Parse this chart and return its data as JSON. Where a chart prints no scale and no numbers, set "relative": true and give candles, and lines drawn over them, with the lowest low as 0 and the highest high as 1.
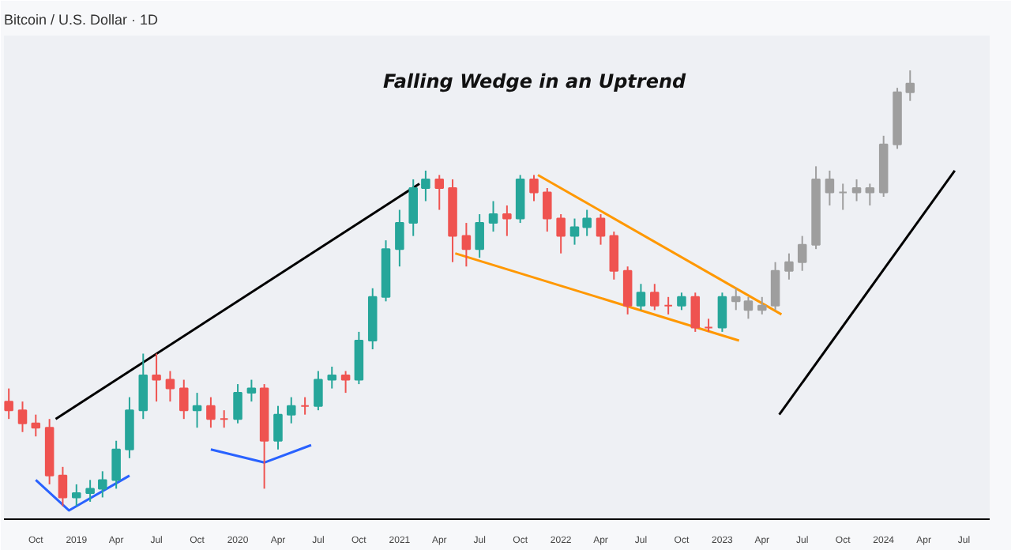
{
  "chart_data": {
    "type": "candlestick",
    "title": "Bitcoin / U.S. Dollar · 1D",
    "relative": true,
    "annotations": [
      "Falling Wedge in an Uptrend"
    ],
    "x": [
      "2018-08",
      "2018-09",
      "2018-10",
      "2018-11",
      "2018-12",
      "2019-01",
      "2019-02",
      "2019-03",
      "2019-04",
      "2019-05",
      "2019-06",
      "2019-07",
      "2019-08",
      "2019-09",
      "2019-10",
      "2019-11",
      "2019-12",
      "2020-01",
      "2020-02",
      "2020-03",
      "2020-04",
      "2020-05",
      "2020-06",
      "2020-07",
      "2020-08",
      "2020-09",
      "2020-10",
      "2020-11",
      "2020-12",
      "2021-01",
      "2021-02",
      "2021-03",
      "2021-04",
      "2021-05",
      "2021-06",
      "2021-07",
      "2021-08",
      "2021-09",
      "2021-10",
      "2021-11",
      "2021-12",
      "2022-01",
      "2022-02",
      "2022-03",
      "2022-04",
      "2022-05",
      "2022-06",
      "2022-07",
      "2022-08",
      "2022-09",
      "2022-10",
      "2022-11",
      "2022-12",
      "2023-01",
      "2023-02",
      "2023-03",
      "2023-04",
      "2023-05",
      "2023-06",
      "2023-07",
      "2023-08",
      "2023-09",
      "2023-10",
      "2023-11",
      "2023-12",
      "2024-01",
      "2024-02",
      "2024-03"
    ],
    "ohlc": [
      [
        0.24,
        0.27,
        0.2,
        0.22
      ],
      [
        0.22,
        0.24,
        0.17,
        0.19
      ],
      [
        0.19,
        0.21,
        0.16,
        0.18
      ],
      [
        0.18,
        0.2,
        0.05,
        0.07
      ],
      [
        0.07,
        0.09,
        0.0,
        0.02
      ],
      [
        0.02,
        0.05,
        0.0,
        0.03
      ],
      [
        0.03,
        0.06,
        0.01,
        0.04
      ],
      [
        0.04,
        0.08,
        0.02,
        0.06
      ],
      [
        0.06,
        0.15,
        0.04,
        0.13
      ],
      [
        0.13,
        0.25,
        0.11,
        0.22
      ],
      [
        0.22,
        0.35,
        0.2,
        0.3
      ],
      [
        0.3,
        0.35,
        0.24,
        0.29
      ],
      [
        0.29,
        0.31,
        0.24,
        0.27
      ],
      [
        0.27,
        0.29,
        0.2,
        0.22
      ],
      [
        0.22,
        0.26,
        0.18,
        0.23
      ],
      [
        0.23,
        0.25,
        0.18,
        0.2
      ],
      [
        0.2,
        0.22,
        0.18,
        0.2
      ],
      [
        0.2,
        0.28,
        0.19,
        0.26
      ],
      [
        0.26,
        0.29,
        0.24,
        0.27
      ],
      [
        0.27,
        0.28,
        0.04,
        0.15
      ],
      [
        0.15,
        0.23,
        0.13,
        0.21
      ],
      [
        0.21,
        0.25,
        0.19,
        0.23
      ],
      [
        0.23,
        0.25,
        0.21,
        0.23
      ],
      [
        0.23,
        0.31,
        0.22,
        0.29
      ],
      [
        0.29,
        0.32,
        0.27,
        0.3
      ],
      [
        0.3,
        0.31,
        0.26,
        0.29
      ],
      [
        0.29,
        0.4,
        0.28,
        0.38
      ],
      [
        0.38,
        0.5,
        0.36,
        0.48
      ],
      [
        0.48,
        0.61,
        0.47,
        0.59
      ],
      [
        0.59,
        0.68,
        0.55,
        0.65
      ],
      [
        0.65,
        0.75,
        0.62,
        0.73
      ],
      [
        0.73,
        0.77,
        0.7,
        0.75
      ],
      [
        0.75,
        0.76,
        0.68,
        0.73
      ],
      [
        0.73,
        0.75,
        0.56,
        0.62
      ],
      [
        0.62,
        0.65,
        0.55,
        0.59
      ],
      [
        0.59,
        0.67,
        0.57,
        0.65
      ],
      [
        0.65,
        0.7,
        0.63,
        0.67
      ],
      [
        0.67,
        0.69,
        0.62,
        0.66
      ],
      [
        0.66,
        0.76,
        0.65,
        0.75
      ],
      [
        0.75,
        0.76,
        0.7,
        0.72
      ],
      [
        0.72,
        0.73,
        0.63,
        0.66
      ],
      [
        0.66,
        0.67,
        0.58,
        0.62
      ],
      [
        0.62,
        0.66,
        0.6,
        0.64
      ],
      [
        0.64,
        0.68,
        0.62,
        0.66
      ],
      [
        0.66,
        0.67,
        0.6,
        0.62
      ],
      [
        0.62,
        0.63,
        0.52,
        0.54
      ],
      [
        0.54,
        0.55,
        0.44,
        0.46
      ],
      [
        0.46,
        0.51,
        0.45,
        0.49
      ],
      [
        0.49,
        0.51,
        0.45,
        0.46
      ],
      [
        0.46,
        0.48,
        0.44,
        0.46
      ],
      [
        0.46,
        0.49,
        0.45,
        0.48
      ],
      [
        0.48,
        0.49,
        0.4,
        0.41
      ],
      [
        0.41,
        0.43,
        0.4,
        0.41
      ],
      [
        0.41,
        0.49,
        0.4,
        0.48
      ],
      [
        0.48,
        0.5,
        0.45,
        0.47
      ],
      [
        0.47,
        0.48,
        0.43,
        0.45
      ],
      [
        0.45,
        0.48,
        0.44,
        0.46
      ],
      [
        0.46,
        0.56,
        0.45,
        0.54
      ],
      [
        0.54,
        0.58,
        0.52,
        0.56
      ],
      [
        0.56,
        0.62,
        0.54,
        0.6
      ],
      [
        0.6,
        0.78,
        0.59,
        0.75
      ],
      [
        0.75,
        0.77,
        0.69,
        0.72
      ],
      [
        0.72,
        0.74,
        0.68,
        0.72
      ],
      [
        0.72,
        0.75,
        0.7,
        0.73
      ],
      [
        0.73,
        0.74,
        0.69,
        0.72
      ],
      [
        0.72,
        0.85,
        0.71,
        0.83
      ],
      [
        0.83,
        0.96,
        0.82,
        0.95
      ],
      [
        0.95,
        1.0,
        0.93,
        0.97
      ]
    ],
    "colors": [
      "#ef5350",
      "#ef5350",
      "#ef5350",
      "#ef5350",
      "#ef5350",
      "#26a69a",
      "#26a69a",
      "#26a69a",
      "#26a69a",
      "#26a69a",
      "#26a69a",
      "#ef5350",
      "#ef5350",
      "#ef5350",
      "#26a69a",
      "#ef5350",
      "#ef5350",
      "#26a69a",
      "#26a69a",
      "#ef5350",
      "#26a69a",
      "#26a69a",
      "#ef5350",
      "#26a69a",
      "#26a69a",
      "#ef5350",
      "#26a69a",
      "#26a69a",
      "#26a69a",
      "#26a69a",
      "#26a69a",
      "#26a69a",
      "#ef5350",
      "#ef5350",
      "#ef5350",
      "#26a69a",
      "#26a69a",
      "#ef5350",
      "#26a69a",
      "#ef5350",
      "#ef5350",
      "#ef5350",
      "#26a69a",
      "#26a69a",
      "#ef5350",
      "#ef5350",
      "#ef5350",
      "#26a69a",
      "#ef5350",
      "#ef5350",
      "#26a69a",
      "#ef5350",
      "#ef5350",
      "#26a69a",
      "#9e9e9e",
      "#9e9e9e",
      "#9e9e9e",
      "#9e9e9e",
      "#9e9e9e",
      "#9e9e9e",
      "#9e9e9e",
      "#9e9e9e",
      "#9e9e9e",
      "#9e9e9e",
      "#9e9e9e",
      "#9e9e9e",
      "#9e9e9e",
      "#9e9e9e"
    ],
    "series": [
      {
        "type": "line",
        "color": "#ff9800",
        "x": [
          "2021-11-10",
          "2023-05-15"
        ],
        "values": [
          0.76,
          0.44
        ]
      },
      {
        "type": "line",
        "color": "#ff9800",
        "x": [
          "2021-05-07",
          "2023-02-08"
        ],
        "values": [
          0.58,
          0.38
        ]
      },
      {
        "type": "line",
        "color": "#2962ff",
        "x": [
          "2018-10-01",
          "2018-12-15",
          "2019-05-01"
        ],
        "values": [
          0.06,
          -0.01,
          0.07
        ]
      },
      {
        "type": "line",
        "color": "#2962ff",
        "x": [
          "2019-11-01",
          "2020-03-01",
          "2020-06-15"
        ],
        "values": [
          0.13,
          0.1,
          0.14
        ]
      },
      {
        "type": "line",
        "color": "#000000",
        "x": [
          "2018-11-15",
          "2021-02-15"
        ],
        "values": [
          0.2,
          0.74
        ]
      },
      {
        "type": "line",
        "color": "#000000",
        "x": [
          "2023-05-10",
          "2024-06-10"
        ],
        "values": [
          0.21,
          0.77
        ]
      }
    ],
    "xlim": [
      "2018-07-21",
      "2024-08-28"
    ],
    "xticks": [
      {
        "value": "2018-10",
        "label": "Oct"
      },
      {
        "value": "2019-01",
        "label": "2019"
      },
      {
        "value": "2019-04",
        "label": "Apr"
      },
      {
        "value": "2019-07",
        "label": "Jul"
      },
      {
        "value": "2019-10",
        "label": "Oct"
      },
      {
        "value": "2020-01",
        "label": "2020"
      },
      {
        "value": "2020-04",
        "label": "Apr"
      },
      {
        "value": "2020-07",
        "label": "Jul"
      },
      {
        "value": "2020-10",
        "label": "Oct"
      },
      {
        "value": "2021-01",
        "label": "2021"
      },
      {
        "value": "2021-04",
        "label": "Apr"
      },
      {
        "value": "2021-07",
        "label": "Jul"
      },
      {
        "value": "2021-10",
        "label": "Oct"
      },
      {
        "value": "2022-01",
        "label": "2022"
      },
      {
        "value": "2022-04",
        "label": "Apr"
      },
      {
        "value": "2022-07",
        "label": "Jul"
      },
      {
        "value": "2022-10",
        "label": "Oct"
      },
      {
        "value": "2023-01",
        "label": "2023"
      },
      {
        "value": "2023-04",
        "label": "Apr"
      },
      {
        "value": "2023-07",
        "label": "Jul"
      },
      {
        "value": "2023-10",
        "label": "Oct"
      },
      {
        "value": "2024-01",
        "label": "2024"
      },
      {
        "value": "2024-04",
        "label": "Apr"
      },
      {
        "value": "2024-07",
        "label": "Jul"
      }
    ],
    "grid": false
  }
}
